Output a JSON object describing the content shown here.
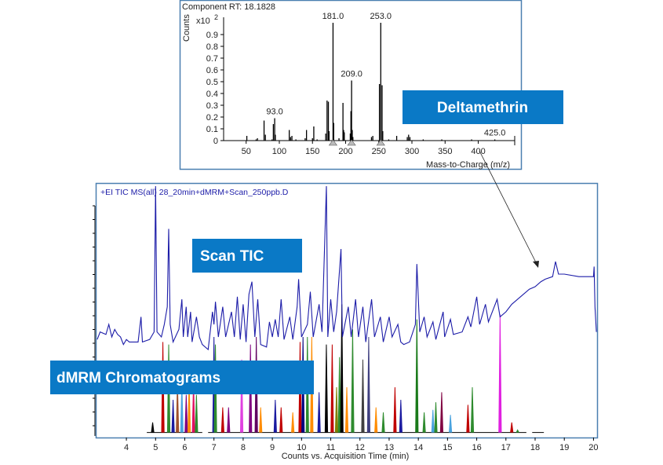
{
  "colors": {
    "callout_bg": "#0a79c6",
    "tic_line": "#1c1ca8",
    "frame": "#4a7fb0"
  },
  "callouts": {
    "compound": "Deltamethrin",
    "scan": "Scan TIC",
    "dmrm": "dMRM Chromatograms"
  },
  "chart_data": [
    {
      "type": "bar",
      "title": "Component RT: 18.1828",
      "ylabel": "Counts",
      "yscale_label": "x10",
      "yscale_exp": "2",
      "xlabel": "Mass-to-Charge (m/z)",
      "xlim": [
        16,
        455
      ],
      "ylim": [
        0,
        1.05
      ],
      "xticks": [
        50,
        100,
        150,
        200,
        250,
        300,
        350,
        400
      ],
      "yticks": [
        0,
        0.1,
        0.2,
        0.3,
        0.4,
        0.5,
        0.6,
        0.7,
        0.8,
        0.9
      ],
      "grid": false,
      "peaks": [
        [
          51,
          0.04
        ],
        [
          65,
          0.01
        ],
        [
          67,
          0.02
        ],
        [
          77,
          0.17
        ],
        [
          79,
          0.05
        ],
        [
          89,
          0.01
        ],
        [
          91,
          0.14
        ],
        [
          93,
          0.19
        ],
        [
          94,
          0.05
        ],
        [
          115,
          0.09
        ],
        [
          117,
          0.03
        ],
        [
          119,
          0.04
        ],
        [
          125,
          0.01
        ],
        [
          139,
          0.02
        ],
        [
          141,
          0.09
        ],
        [
          150,
          0.02
        ],
        [
          152,
          0.12
        ],
        [
          157,
          0.01
        ],
        [
          170,
          0.06
        ],
        [
          172,
          0.34
        ],
        [
          174,
          0.33
        ],
        [
          175,
          0.08
        ],
        [
          181,
          1.0
        ],
        [
          182,
          0.15
        ],
        [
          190,
          0.02
        ],
        [
          196,
          0.32
        ],
        [
          197,
          0.09
        ],
        [
          198,
          0.07
        ],
        [
          207,
          0.06
        ],
        [
          208,
          0.25
        ],
        [
          209,
          0.51
        ],
        [
          210,
          0.09
        ],
        [
          211,
          0.03
        ],
        [
          239,
          0.03
        ],
        [
          241,
          0.04
        ],
        [
          251,
          0.48
        ],
        [
          253,
          1.0
        ],
        [
          255,
          0.47
        ],
        [
          256,
          0.08
        ],
        [
          265,
          0.01
        ],
        [
          277,
          0.04
        ],
        [
          293,
          0.03
        ],
        [
          295,
          0.05
        ],
        [
          297,
          0.03
        ],
        [
          317,
          0.01
        ],
        [
          345,
          0.01
        ],
        [
          390,
          0.01
        ],
        [
          425,
          0.01
        ]
      ],
      "peak_labels": [
        "93.0",
        "181.0",
        "209.0",
        "253.0",
        "425.0"
      ],
      "peak_label_mz": [
        93,
        181,
        209,
        253,
        425
      ],
      "markers_mz": [
        181,
        209,
        253
      ]
    },
    {
      "type": "line",
      "title": "+EI TIC MS(all) 28_20min+dMRM+Scan_250ppb.D",
      "xlabel": "Counts vs. Acquisition Time (min)",
      "xlim": [
        2.95,
        20.15
      ],
      "ylim": [
        0,
        100
      ],
      "xticks": [
        4,
        5,
        6,
        7,
        8,
        9,
        10,
        11,
        12,
        13,
        14,
        15,
        16,
        17,
        18,
        19,
        20
      ],
      "grid": false,
      "tic": [
        [
          3.0,
          39
        ],
        [
          3.1,
          42
        ],
        [
          3.3,
          41
        ],
        [
          3.4,
          45
        ],
        [
          3.5,
          40
        ],
        [
          3.6,
          43
        ],
        [
          3.7,
          41
        ],
        [
          3.8,
          40
        ],
        [
          3.9,
          37
        ],
        [
          4.0,
          39
        ],
        [
          4.1,
          38
        ],
        [
          4.4,
          38
        ],
        [
          4.5,
          48
        ],
        [
          4.55,
          38
        ],
        [
          4.8,
          39
        ],
        [
          4.95,
          42
        ],
        [
          5.0,
          100
        ],
        [
          5.05,
          42
        ],
        [
          5.2,
          40
        ],
        [
          5.3,
          45
        ],
        [
          5.4,
          52
        ],
        [
          5.45,
          83
        ],
        [
          5.5,
          45
        ],
        [
          5.6,
          38
        ],
        [
          5.8,
          43
        ],
        [
          5.9,
          55
        ],
        [
          5.95,
          40
        ],
        [
          6.05,
          52
        ],
        [
          6.1,
          40
        ],
        [
          6.2,
          50
        ],
        [
          6.25,
          38
        ],
        [
          6.4,
          48
        ],
        [
          6.5,
          40
        ],
        [
          6.6,
          37
        ],
        [
          6.8,
          35
        ],
        [
          6.95,
          50
        ],
        [
          7.0,
          45
        ],
        [
          7.05,
          54
        ],
        [
          7.15,
          40
        ],
        [
          7.3,
          52
        ],
        [
          7.4,
          40
        ],
        [
          7.6,
          50
        ],
        [
          7.7,
          40
        ],
        [
          7.8,
          56
        ],
        [
          7.9,
          39
        ],
        [
          8.0,
          53
        ],
        [
          8.1,
          38
        ],
        [
          8.2,
          57
        ],
        [
          8.3,
          62
        ],
        [
          8.4,
          40
        ],
        [
          8.5,
          55
        ],
        [
          8.6,
          37
        ],
        [
          8.8,
          36
        ],
        [
          8.9,
          46
        ],
        [
          9.0,
          40
        ],
        [
          9.1,
          47
        ],
        [
          9.2,
          40
        ],
        [
          9.3,
          55
        ],
        [
          9.4,
          39
        ],
        [
          9.6,
          48
        ],
        [
          9.7,
          39
        ],
        [
          9.85,
          52
        ],
        [
          9.9,
          63
        ],
        [
          10.0,
          40
        ],
        [
          10.2,
          45
        ],
        [
          10.3,
          58
        ],
        [
          10.4,
          40
        ],
        [
          10.6,
          53
        ],
        [
          10.7,
          42
        ],
        [
          10.85,
          100
        ],
        [
          10.9,
          40
        ],
        [
          11.0,
          55
        ],
        [
          11.1,
          42
        ],
        [
          11.2,
          50
        ],
        [
          11.35,
          75
        ],
        [
          11.4,
          40
        ],
        [
          11.6,
          52
        ],
        [
          11.7,
          40
        ],
        [
          11.85,
          55
        ],
        [
          11.95,
          40
        ],
        [
          12.1,
          52
        ],
        [
          12.2,
          38
        ],
        [
          12.4,
          55
        ],
        [
          12.5,
          40
        ],
        [
          12.7,
          48
        ],
        [
          12.8,
          38
        ],
        [
          13.0,
          48
        ],
        [
          13.1,
          40
        ],
        [
          13.3,
          45
        ],
        [
          13.4,
          38
        ],
        [
          13.5,
          37
        ],
        [
          13.7,
          38
        ],
        [
          13.9,
          45
        ],
        [
          13.95,
          69
        ],
        [
          14.05,
          42
        ],
        [
          14.2,
          48
        ],
        [
          14.3,
          40
        ],
        [
          14.5,
          46
        ],
        [
          14.6,
          39
        ],
        [
          14.85,
          50
        ],
        [
          14.9,
          40
        ],
        [
          15.1,
          47
        ],
        [
          15.2,
          41
        ],
        [
          15.5,
          42
        ],
        [
          15.7,
          48
        ],
        [
          15.8,
          44
        ],
        [
          16.0,
          56
        ],
        [
          16.1,
          45
        ],
        [
          16.3,
          53
        ],
        [
          16.4,
          46
        ],
        [
          16.7,
          55
        ],
        [
          16.8,
          48
        ],
        [
          17.0,
          50
        ],
        [
          17.2,
          53
        ],
        [
          17.5,
          56
        ],
        [
          17.8,
          59
        ],
        [
          18.0,
          60
        ],
        [
          18.2,
          62
        ],
        [
          18.35,
          63
        ],
        [
          18.6,
          64
        ],
        [
          18.7,
          70
        ],
        [
          18.8,
          65
        ],
        [
          19.0,
          65
        ],
        [
          19.5,
          64
        ],
        [
          20.0,
          64
        ],
        [
          20.02,
          68
        ],
        [
          20.05,
          52
        ],
        [
          20.1,
          42
        ]
      ],
      "dmrm_baseline": [
        [
          4.7,
          6.6
        ],
        [
          6.8,
          17.7
        ],
        [
          17.9,
          18.3
        ]
      ],
      "dmrm_peaks": [
        [
          4.9,
          6,
          "#000000"
        ],
        [
          5.25,
          38,
          "#c00000"
        ],
        [
          5.45,
          37,
          "#2e8b2e"
        ],
        [
          5.6,
          15,
          "#1a1aa0"
        ],
        [
          5.75,
          22,
          "#a0522d"
        ],
        [
          5.9,
          22,
          "#4aa3df"
        ],
        [
          6.05,
          17,
          "#800080"
        ],
        [
          6.15,
          22,
          "#ff8c00"
        ],
        [
          6.3,
          22,
          "#e01060"
        ],
        [
          6.4,
          17,
          "#2e8b2e"
        ],
        [
          7.0,
          40,
          "#1a1aa0"
        ],
        [
          7.05,
          37,
          "#2e8b2e"
        ],
        [
          7.3,
          12,
          "#c00000"
        ],
        [
          7.5,
          12,
          "#800080"
        ],
        [
          7.95,
          31,
          "#e040e0"
        ],
        [
          8.25,
          37,
          "#800080"
        ],
        [
          8.45,
          40,
          "#600060"
        ],
        [
          8.6,
          12,
          "#ff8c00"
        ],
        [
          9.1,
          15,
          "#1a1aa0"
        ],
        [
          9.3,
          12,
          "#c00000"
        ],
        [
          9.7,
          10,
          "#ff8c00"
        ],
        [
          9.95,
          38,
          "#c00000"
        ],
        [
          10.05,
          40,
          "#000080"
        ],
        [
          10.2,
          40,
          "#2e8b2e"
        ],
        [
          10.35,
          40,
          "#ff8c00"
        ],
        [
          10.6,
          18,
          "#1a1aa0"
        ],
        [
          10.85,
          37,
          "#000000"
        ],
        [
          11.05,
          37,
          "#c00000"
        ],
        [
          11.2,
          20,
          "#808000"
        ],
        [
          11.3,
          32,
          "#2e8b2e"
        ],
        [
          11.38,
          53,
          "#000000"
        ],
        [
          11.55,
          20,
          "#ff8c00"
        ],
        [
          11.75,
          43,
          "#2e8b2e"
        ],
        [
          12.1,
          31,
          "#404040"
        ],
        [
          12.3,
          40,
          "#404080"
        ],
        [
          12.55,
          12,
          "#ff8c00"
        ],
        [
          12.8,
          10,
          "#2e8b2e"
        ],
        [
          13.2,
          20,
          "#c00000"
        ],
        [
          13.4,
          15,
          "#1a1aa0"
        ],
        [
          13.95,
          47,
          "#1a7a1a"
        ],
        [
          14.2,
          10,
          "#2e8b2e"
        ],
        [
          14.5,
          11,
          "#4aa3df"
        ],
        [
          14.6,
          14,
          "#2e8b2e"
        ],
        [
          14.8,
          18,
          "#800040"
        ],
        [
          15.1,
          9,
          "#4aa3df"
        ],
        [
          15.7,
          13,
          "#c00000"
        ],
        [
          15.85,
          20,
          "#2e8b2e"
        ],
        [
          16.8,
          49,
          "#e020e0"
        ],
        [
          17.2,
          6,
          "#c00000"
        ],
        [
          17.4,
          3,
          "#2e8b2e"
        ]
      ]
    }
  ]
}
